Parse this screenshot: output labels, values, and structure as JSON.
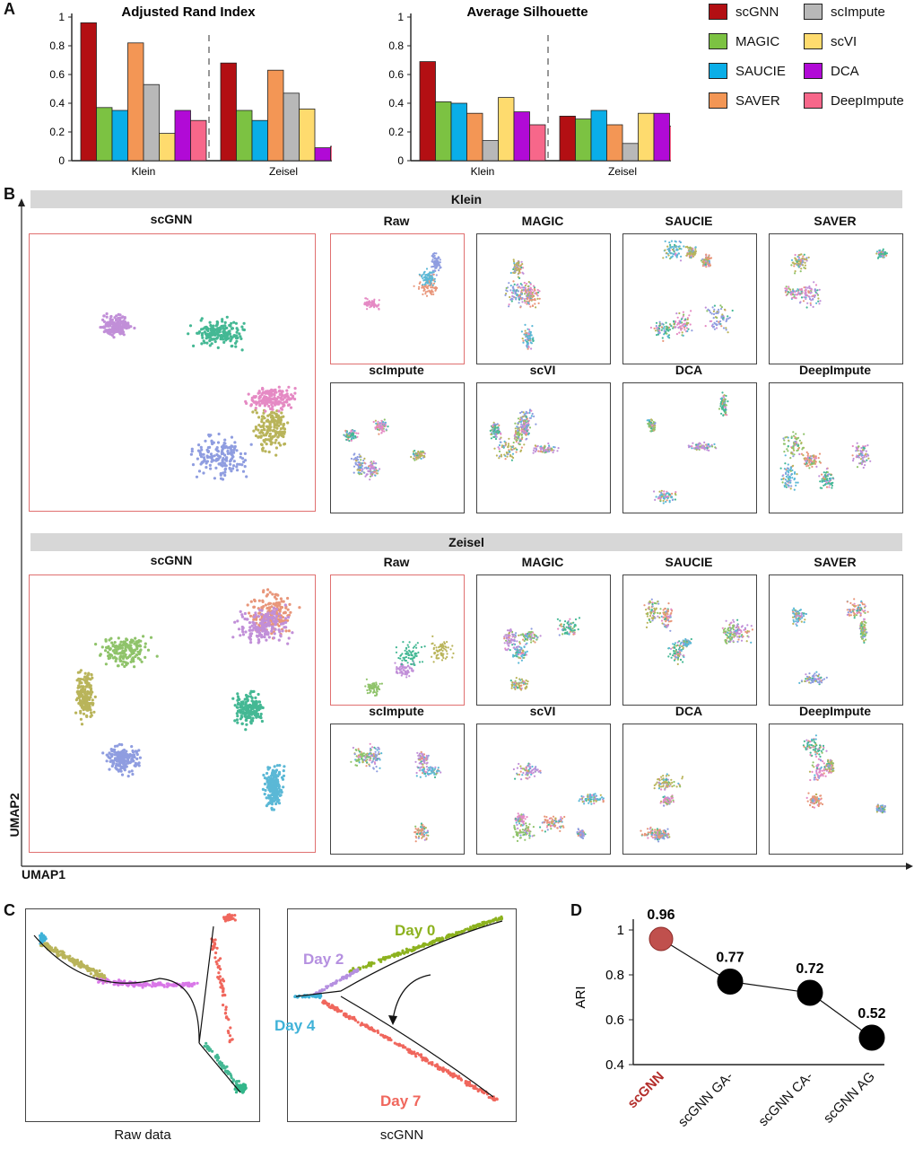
{
  "panels": {
    "a": "A",
    "b": "B",
    "c": "C",
    "d": "D"
  },
  "colors": {
    "scGNN": "#b30f13",
    "MAGIC": "#7cc242",
    "SAUCIE": "#0aaee8",
    "SAVER": "#f39655",
    "scImpute": "#b8b8b8",
    "scVI": "#fedb6e",
    "DCA": "#b10ad6",
    "DeepImpute": "#f7678a"
  },
  "legend": [
    "scGNN",
    "scImpute",
    "MAGIC",
    "scVI",
    "SAUCIE",
    "DCA",
    "SAVER",
    "DeepImpute"
  ],
  "chart_data": [
    {
      "type": "bar",
      "title": "Adjusted Rand Index",
      "categories": [
        "Klein",
        "Zeisel"
      ],
      "ylim": [
        0,
        1
      ],
      "yticks": [
        "0",
        "0.2",
        "0.4",
        "0.6",
        "0.8",
        "1"
      ],
      "series": [
        {
          "name": "scGNN",
          "values": [
            0.96,
            0.68
          ]
        },
        {
          "name": "MAGIC",
          "values": [
            0.37,
            0.35
          ]
        },
        {
          "name": "SAUCIE",
          "values": [
            0.35,
            0.28
          ]
        },
        {
          "name": "SAVER",
          "values": [
            0.82,
            0.63
          ]
        },
        {
          "name": "scImpute",
          "values": [
            0.53,
            0.47
          ]
        },
        {
          "name": "scVI",
          "values": [
            0.19,
            0.36
          ]
        },
        {
          "name": "DCA",
          "values": [
            0.35,
            0.09
          ]
        },
        {
          "name": "DeepImpute",
          "values": [
            0.28,
            0.1
          ]
        }
      ]
    },
    {
      "type": "bar",
      "title": "Average Silhouette",
      "categories": [
        "Klein",
        "Zeisel"
      ],
      "ylim": [
        0,
        1
      ],
      "yticks": [
        "0",
        "0.2",
        "0.4",
        "0.6",
        "0.8",
        "1"
      ],
      "series": [
        {
          "name": "scGNN",
          "values": [
            0.69,
            0.31
          ]
        },
        {
          "name": "MAGIC",
          "values": [
            0.41,
            0.29
          ]
        },
        {
          "name": "SAUCIE",
          "values": [
            0.4,
            0.35
          ]
        },
        {
          "name": "SAVER",
          "values": [
            0.33,
            0.25
          ]
        },
        {
          "name": "scImpute",
          "values": [
            0.14,
            0.12
          ]
        },
        {
          "name": "scVI",
          "values": [
            0.44,
            0.33
          ]
        },
        {
          "name": "DCA",
          "values": [
            0.34,
            0.33
          ]
        },
        {
          "name": "DeepImpute",
          "values": [
            0.25,
            0.24
          ]
        }
      ]
    },
    {
      "type": "line",
      "categories": [
        "scGNN",
        "scGNN GA-",
        "scGNN CA-",
        "scGNN AG"
      ],
      "values": [
        0.96,
        0.77,
        0.72,
        0.52
      ],
      "value_labels": [
        "0.96",
        "0.77",
        "0.72",
        "0.52"
      ],
      "ylabel": "ARI",
      "ylim": [
        0.4,
        1
      ],
      "yticks": [
        "0.4",
        "0.6",
        "0.8",
        "1"
      ]
    }
  ],
  "umap": {
    "klein_label": "Klein",
    "zeisel_label": "Zeisel",
    "xlabel": "UMAP1",
    "ylabel": "UMAP2",
    "methods_top": [
      "Raw",
      "MAGIC",
      "SAUCIE",
      "SAVER"
    ],
    "methods_bottom": [
      "scImpute",
      "scVI",
      "DCA",
      "DeepImpute"
    ],
    "main": "scGNN",
    "cluster_colors": [
      "#e8967a",
      "#5bb8d6",
      "#8fc36a",
      "#c18fd8",
      "#44b894",
      "#b9b45a",
      "#e58ac4",
      "#8f9de0"
    ]
  },
  "trajectory": {
    "raw_label": "Raw data",
    "scgnn_label": "scGNN",
    "days": [
      "Day 0",
      "Day 2",
      "Day 4",
      "Day 7"
    ],
    "day_colors": [
      "#8db21f",
      "#b590e0",
      "#3fb2d8",
      "#f0675d"
    ]
  }
}
